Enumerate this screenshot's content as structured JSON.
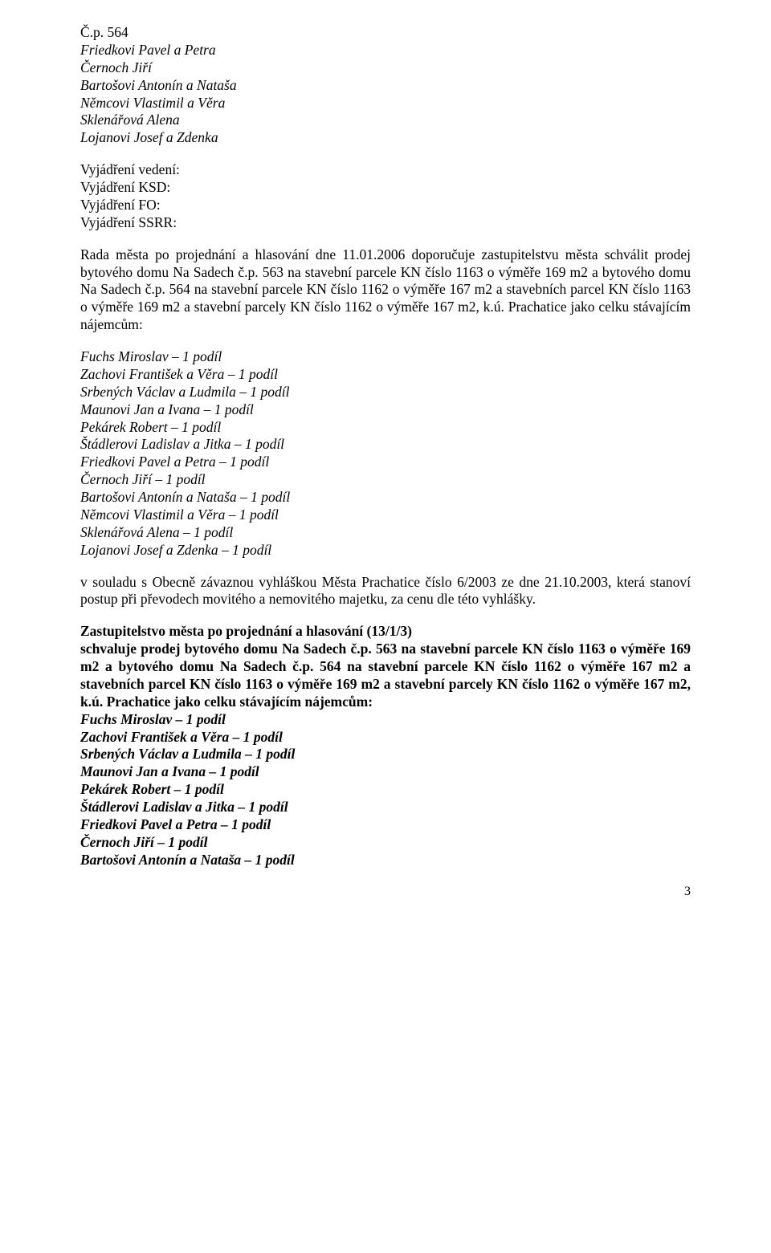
{
  "header": {
    "cp": "Č.p. 564",
    "lines": [
      "Friedkovi Pavel a Petra",
      "Černoch Jiří",
      "Bartošovi Antonín a Nataša",
      "Němcovi Vlastimil a Věra",
      "Sklenářová Alena",
      "Lojanovi Josef a Zdenka"
    ]
  },
  "vyjadreni": [
    "Vyjádření vedení:",
    "Vyjádření KSD:",
    "Vyjádření FO:",
    "Vyjádření SSRR:"
  ],
  "rada_para": "Rada města po projednání a hlasování dne 11.01.2006 doporučuje zastupitelstvu města schválit prodej bytového domu Na Sadech č.p. 563 na stavební parcele KN číslo 1163 o výměře 169 m2 a bytového domu Na Sadech č.p. 564 na stavební parcele KN číslo 1162 o výměře 167 m2 a stavebních parcel KN číslo 1163 o výměře 169 m2 a stavební parcely KN číslo 1162 o výměře 167 m2, k.ú. Prachatice jako celku stávajícím nájemcům:",
  "list_a": [
    "Fuchs Miroslav – 1 podíl",
    "Zachovi František a Věra – 1 podíl",
    "Srbených Václav a Ludmila – 1 podíl",
    "Maunovi Jan a Ivana – 1 podíl",
    "Pekárek Robert – 1 podíl",
    "Štádlerovi Ladislav a Jitka – 1 podíl",
    "Friedkovi Pavel a Petra – 1 podíl",
    "Černoch Jiří – 1 podíl",
    "Bartošovi Antonín a Nataša – 1 podíl",
    "Němcovi Vlastimil a Věra – 1 podíl",
    "Sklenářová Alena – 1 podíl",
    "Lojanovi Josef a Zdenka – 1 podíl"
  ],
  "vyhlaska_para": "v souladu s Obecně závaznou vyhláškou Města Prachatice číslo 6/2003 ze dne 21.10.2003, která stanoví postup při převodech movitého a nemovitého majetku, za cenu dle této vyhlášky.",
  "resolution": {
    "heading": "Zastupitelstvo města po projednání a hlasování  (13/1/3)",
    "body": "schvaluje prodej bytového domu Na Sadech č.p. 563 na stavební parcele KN číslo 1163 o výměře 169 m2 a bytového domu Na Sadech č.p. 564 na stavební parcele KN číslo 1162 o výměře 167 m2 a stavebních parcel KN číslo 1163 o výměře 169 m2 a stavební parcely KN číslo 1162 o výměře 167 m2, k.ú. Prachatice jako celku stávajícím nájemcům:"
  },
  "list_b": [
    "Fuchs Miroslav – 1 podíl",
    "Zachovi František a Věra – 1 podíl",
    "Srbených Václav a Ludmila – 1 podíl",
    "Maunovi Jan a Ivana – 1 podíl",
    "Pekárek Robert – 1 podíl",
    "Štádlerovi Ladislav a Jitka – 1 podíl",
    "Friedkovi Pavel a Petra – 1 podíl",
    "Černoch Jiří – 1 podíl",
    "Bartošovi Antonín a Nataša – 1 podíl"
  ],
  "page_number": "3"
}
